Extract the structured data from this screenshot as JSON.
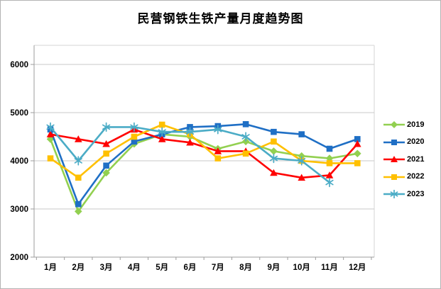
{
  "chart_data": {
    "type": "line",
    "title": "民营钢铁生铁产量月度趋势图",
    "categories": [
      "1月",
      "2月",
      "3月",
      "4月",
      "5月",
      "6月",
      "7月",
      "8月",
      "9月",
      "10月",
      "11月",
      "12月"
    ],
    "series": [
      {
        "name": "2019",
        "color": "#92D050",
        "marker": "diamond",
        "values": [
          4450,
          2950,
          3750,
          4350,
          4550,
          4500,
          4250,
          4400,
          4200,
          4100,
          4050,
          4150
        ]
      },
      {
        "name": "2020",
        "color": "#1F6FC5",
        "marker": "square",
        "values": [
          4650,
          3100,
          3900,
          4400,
          4550,
          4700,
          4720,
          4760,
          4600,
          4550,
          4250,
          4450
        ]
      },
      {
        "name": "2021",
        "color": "#FF0000",
        "marker": "triangle",
        "values": [
          4550,
          4450,
          4350,
          4650,
          4450,
          4380,
          4200,
          4200,
          3750,
          3650,
          3700,
          4350
        ]
      },
      {
        "name": "2022",
        "color": "#FFC000",
        "marker": "square",
        "values": [
          4050,
          3650,
          4150,
          4500,
          4750,
          4550,
          4050,
          4150,
          4400,
          4000,
          3950,
          3950
        ]
      },
      {
        "name": "2023",
        "color": "#4BACC6",
        "marker": "asterisk",
        "values": [
          4700,
          4000,
          4700,
          4700,
          4600,
          4600,
          4650,
          4500,
          4050,
          4000,
          3550,
          null
        ]
      }
    ],
    "xlabel": "",
    "ylabel": "",
    "ylim": [
      2000,
      6400
    ],
    "yticks": [
      2000,
      3000,
      4000,
      5000,
      6000
    ],
    "grid": true,
    "legend_position": "right",
    "colors": {
      "gridline": "#C9C9C9",
      "axis": "#9C9C9C",
      "plot_border": "#D6D6D6",
      "label_text": "#000000"
    }
  }
}
